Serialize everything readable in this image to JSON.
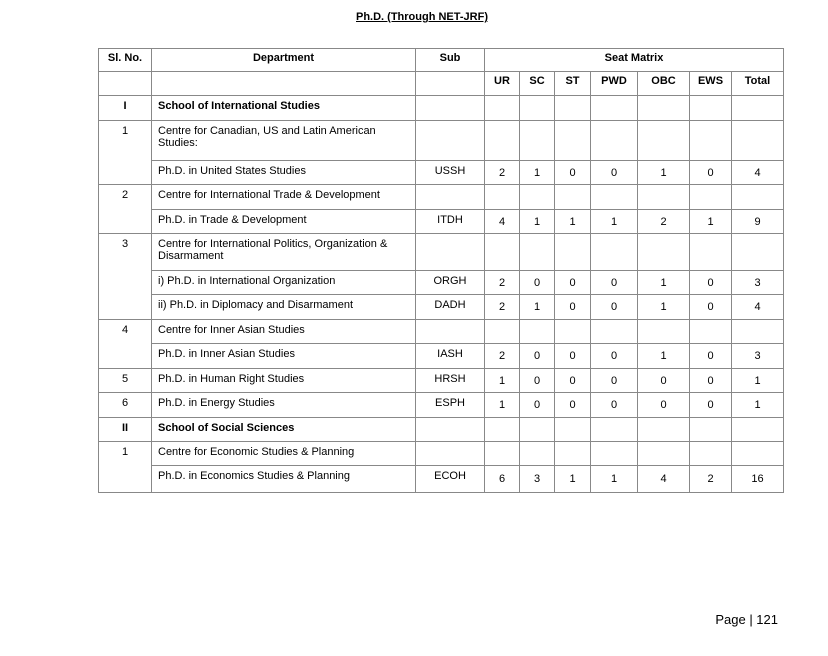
{
  "title": "Ph.D. (Through NET-JRF)",
  "headers": {
    "sl": "Sl. No.",
    "department": "Department",
    "sub": "Sub",
    "seat_matrix": "Seat Matrix",
    "categories": [
      "UR",
      "SC",
      "ST",
      "PWD",
      "OBC",
      "EWS",
      "Total"
    ]
  },
  "rows": [
    {
      "sl": "I",
      "dept": "School of International Studies",
      "sub": "",
      "values": [],
      "bold": true,
      "span": 1
    },
    {
      "sl": "1",
      "dept": "Centre for Canadian, US and Latin American Studies:",
      "sub": "",
      "values": [],
      "span": 2
    },
    {
      "dept": "Ph.D. in United States Studies",
      "sub": "USSH",
      "values": [
        "2",
        "1",
        "0",
        "0",
        "1",
        "0",
        "4"
      ]
    },
    {
      "sl": "2",
      "dept": "Centre for International Trade & Development",
      "sub": "",
      "values": [],
      "span": 2
    },
    {
      "dept": "Ph.D. in Trade &  Development",
      "sub": "ITDH",
      "values": [
        "4",
        "1",
        "1",
        "1",
        "2",
        "1",
        "9"
      ]
    },
    {
      "sl": "3",
      "dept": "Centre for International Politics, Organization & Disarmament",
      "sub": "",
      "values": [],
      "span": 3
    },
    {
      "dept": "i) Ph.D. in International Organization",
      "sub": "ORGH",
      "values": [
        "2",
        "0",
        "0",
        "0",
        "1",
        "0",
        "3"
      ]
    },
    {
      "dept": "ii) Ph.D. in Diplomacy and Disarmament",
      "sub": "DADH",
      "values": [
        "2",
        "1",
        "0",
        "0",
        "1",
        "0",
        "4"
      ]
    },
    {
      "sl": "4",
      "dept": "Centre for Inner Asian Studies",
      "sub": "",
      "values": [],
      "span": 2
    },
    {
      "dept": "Ph.D.  in Inner Asian Studies",
      "sub": "IASH",
      "values": [
        "2",
        "0",
        "0",
        "0",
        "1",
        "0",
        "3"
      ]
    },
    {
      "sl": "5",
      "dept": "Ph.D. in Human Right Studies",
      "sub": "HRSH",
      "values": [
        "1",
        "0",
        "0",
        "0",
        "0",
        "0",
        "1"
      ],
      "span": 1
    },
    {
      "sl": "6",
      "dept": "Ph.D. in Energy Studies",
      "sub": "ESPH",
      "values": [
        "1",
        "0",
        "0",
        "0",
        "0",
        "0",
        "1"
      ],
      "span": 1
    },
    {
      "sl": "II",
      "dept": "School of Social Sciences",
      "sub": "",
      "values": [],
      "bold": true,
      "span": 1
    },
    {
      "sl": "1",
      "dept": "Centre for Economic Studies & Planning",
      "sub": "",
      "values": [],
      "span": 2
    },
    {
      "dept": "Ph.D. in Economics Studies & Planning",
      "sub": "ECOH",
      "values": [
        "6",
        "3",
        "1",
        "1",
        "4",
        "2",
        "16"
      ]
    }
  ],
  "footer": {
    "page": "Page | 121"
  }
}
